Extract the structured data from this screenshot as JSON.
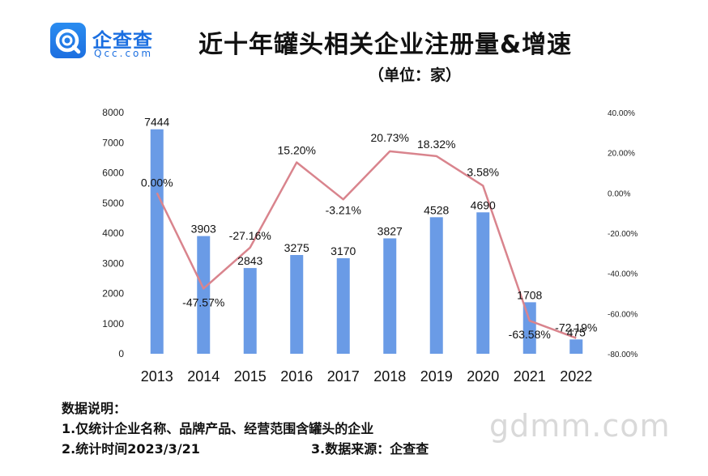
{
  "brand": {
    "name": "企查查",
    "domain": "Qcc.com"
  },
  "header": {
    "title": "近十年罐头相关企业注册量&增速",
    "subtitle": "（单位：家）"
  },
  "chart_data": {
    "type": "bar",
    "title": "近十年罐头相关企业注册量&增速",
    "subtitle": "（单位：家）",
    "categories": [
      "2013",
      "2014",
      "2015",
      "2016",
      "2017",
      "2018",
      "2019",
      "2020",
      "2021",
      "2022"
    ],
    "series": [
      {
        "type": "bar",
        "axis": "left",
        "values": [
          7444,
          3903,
          2843,
          3275,
          3170,
          3827,
          4528,
          4690,
          1708,
          475
        ],
        "labels": [
          "7444",
          "3903",
          "2843",
          "3275",
          "3170",
          "3827",
          "4528",
          "4690",
          "1708",
          "475"
        ],
        "color": "#6a9be6"
      },
      {
        "type": "line",
        "axis": "right",
        "values": [
          0.0,
          -47.57,
          -27.16,
          15.2,
          -3.21,
          20.73,
          18.32,
          3.58,
          -63.58,
          -72.19
        ],
        "labels": [
          "0.00%",
          "-47.57%",
          "-27.16%",
          "15.20%",
          "-3.21%",
          "20.73%",
          "18.32%",
          "3.58%",
          "-63.58%",
          "-72.19%"
        ],
        "color": "#d9848d"
      }
    ],
    "left_axis": {
      "ylim": [
        0,
        8000
      ],
      "ticks": [
        "0",
        "1000",
        "2000",
        "3000",
        "4000",
        "5000",
        "6000",
        "7000",
        "8000"
      ]
    },
    "right_axis": {
      "ylim": [
        -80,
        40
      ],
      "ticks": [
        "-80.00%",
        "-60.00%",
        "-40.00%",
        "-20.00%",
        "0.00%",
        "20.00%",
        "40.00%"
      ]
    },
    "grid": false,
    "legend": "none"
  },
  "notes": {
    "heading": "数据说明：",
    "line1": "1.仅统计企业名称、品牌产品、经营范围含罐头的企业",
    "line2": "2.统计时间2023/3/21",
    "line3": "3.数据来源：企查查"
  },
  "watermark": "gdmm.com",
  "colors": {
    "bar": "#6a9be6",
    "line": "#d9848d",
    "brand": "#1b6fe1"
  }
}
